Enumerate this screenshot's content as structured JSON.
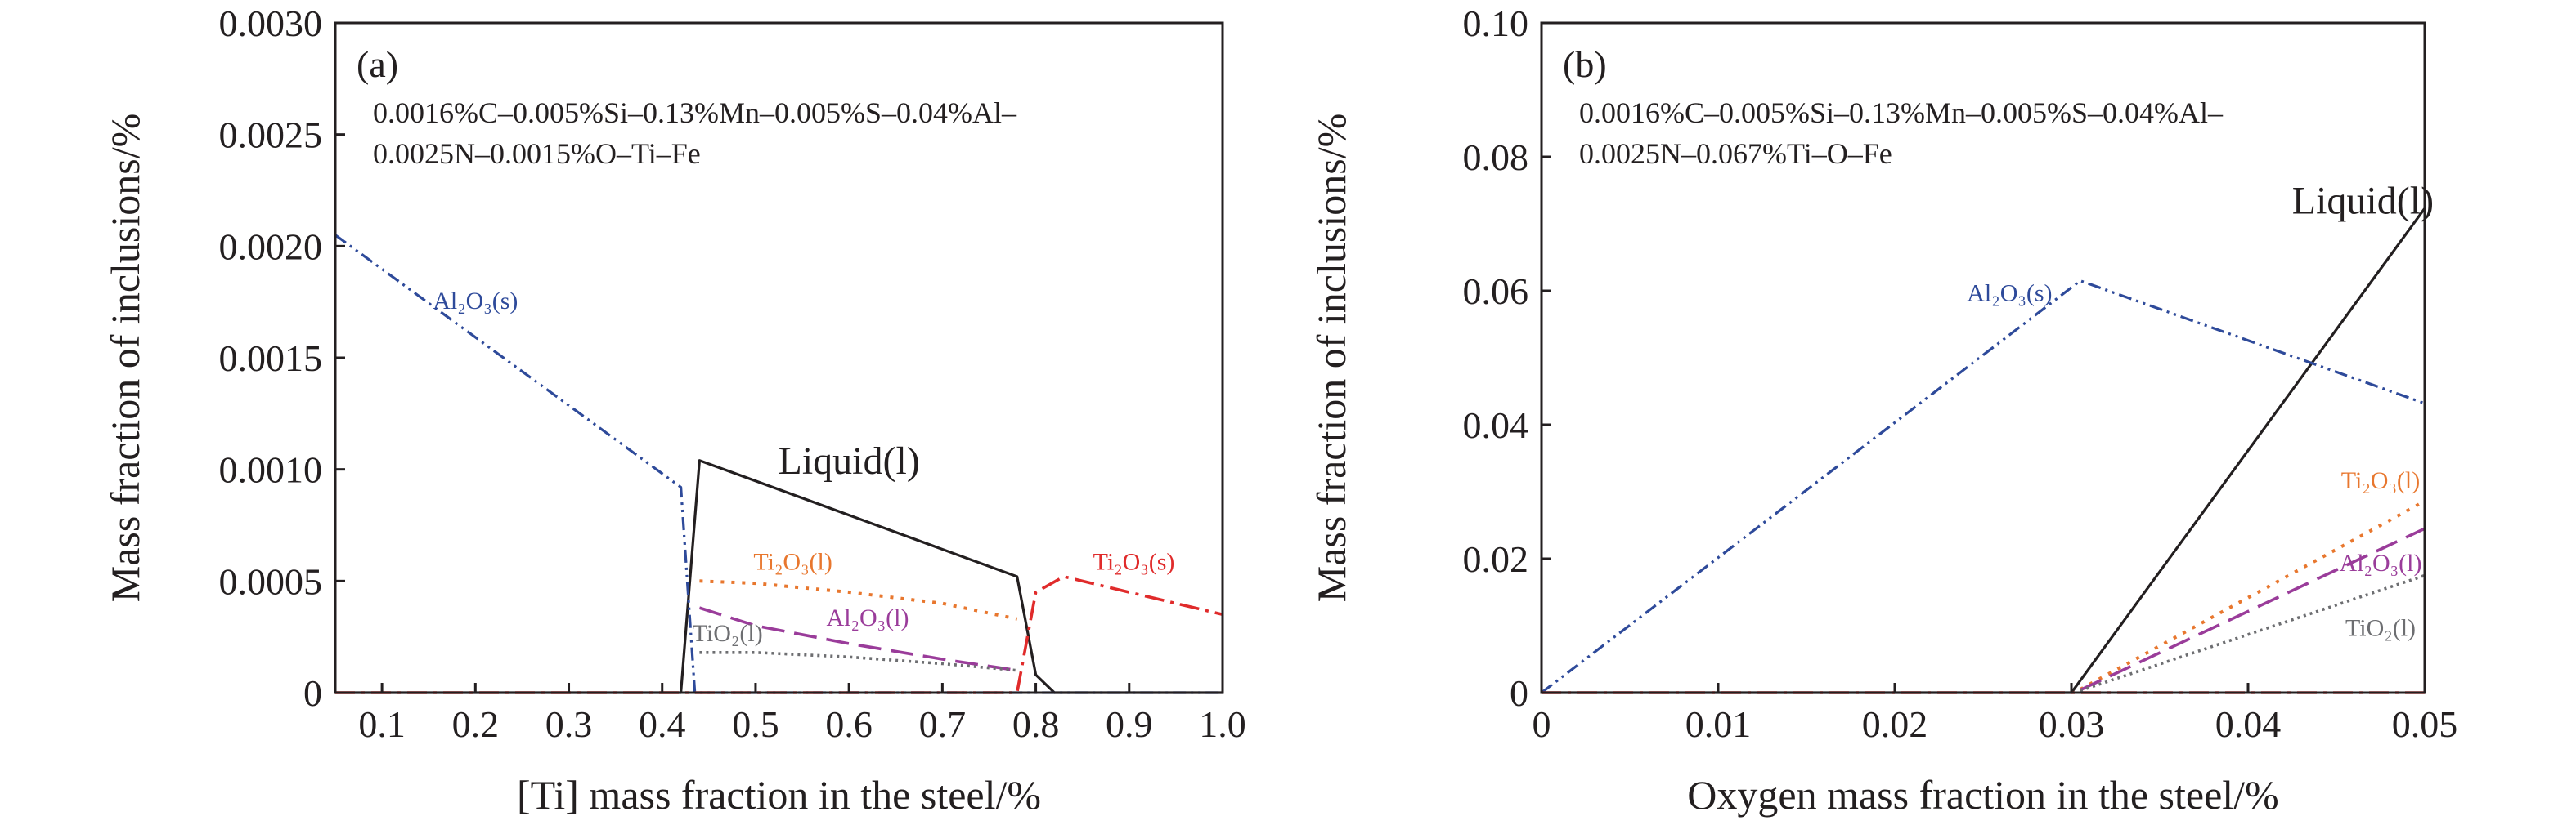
{
  "colors": {
    "liquid": "#231f20",
    "al2o3_s": "#2e4a9a",
    "ti2o3_s": "#e02b2b",
    "ti2o3_l": "#e8772e",
    "al2o3_l": "#9a3c9a",
    "tio2_l": "#6d6e71",
    "axis": "#231f20"
  },
  "chart_data": [
    {
      "type": "line",
      "panel_label": "(a)",
      "composition_line1": "0.0016%C–0.005%Si–0.13%Mn–0.005%S–0.04%Al–",
      "composition_line2": "0.0025N–0.0015%O–Ti–Fe",
      "xlabel": "[Ti] mass fraction in the steel/%",
      "ylabel": "Mass fraction of inclusions/%",
      "xlim": [
        0.05,
        1.0
      ],
      "ylim": [
        0,
        0.003
      ],
      "x_ticks": [
        0.1,
        0.2,
        0.3,
        0.4,
        0.5,
        0.6,
        0.7,
        0.8,
        0.9,
        1.0
      ],
      "x_tick_labels": [
        "0.1",
        "0.2",
        "0.3",
        "0.4",
        "0.5",
        "0.6",
        "0.7",
        "0.8",
        "0.9",
        "1.0"
      ],
      "y_ticks": [
        0,
        0.0005,
        0.001,
        0.0015,
        0.002,
        0.0025,
        0.003
      ],
      "y_tick_labels": [
        "0",
        "0.0005",
        "0.0010",
        "0.0015",
        "0.0020",
        "0.0025",
        "0.0030"
      ],
      "series": [
        {
          "key": "liquid",
          "label": "Liquid(l)",
          "label_at": [
            0.6,
            0.00098
          ],
          "label_style": "big",
          "points": [
            [
              0.05,
              0
            ],
            [
              0.42,
              0
            ],
            [
              0.44,
              0.00104
            ],
            [
              0.78,
              0.00052
            ],
            [
              0.8,
              8e-05
            ],
            [
              0.82,
              0
            ],
            [
              1.0,
              0
            ]
          ]
        },
        {
          "key": "al2o3_s",
          "label": "Al₂O₃(s)",
          "label_at": [
            0.2,
            0.00172
          ],
          "points": [
            [
              0.05,
              0.00205
            ],
            [
              0.42,
              0.00092
            ],
            [
              0.435,
              0
            ],
            [
              1.0,
              0
            ]
          ]
        },
        {
          "key": "ti2o3_s",
          "label": "Ti₂O₃(s)",
          "label_at": [
            0.905,
            0.00055
          ],
          "points": [
            [
              0.05,
              0
            ],
            [
              0.78,
              0
            ],
            [
              0.8,
              0.00045
            ],
            [
              0.83,
              0.00052
            ],
            [
              1.0,
              0.00035
            ]
          ]
        },
        {
          "key": "ti2o3_l",
          "label": "Ti₂O₃(l)",
          "label_at": [
            0.54,
            0.00055
          ],
          "points": [
            [
              0.44,
              0.0005
            ],
            [
              0.5,
              0.00049
            ],
            [
              0.6,
              0.00045
            ],
            [
              0.7,
              0.0004
            ],
            [
              0.78,
              0.00033
            ]
          ]
        },
        {
          "key": "al2o3_l",
          "label": "Al₂O₃(l)",
          "label_at": [
            0.62,
            0.0003
          ],
          "points": [
            [
              0.44,
              0.00038
            ],
            [
              0.5,
              0.0003
            ],
            [
              0.6,
              0.00022
            ],
            [
              0.7,
              0.00015
            ],
            [
              0.78,
              0.0001
            ]
          ]
        },
        {
          "key": "tio2_l",
          "label": "TiO₂(l)",
          "label_at": [
            0.47,
            0.00023
          ],
          "points": [
            [
              0.44,
              0.00018
            ],
            [
              0.5,
              0.00018
            ],
            [
              0.6,
              0.00016
            ],
            [
              0.7,
              0.00013
            ],
            [
              0.78,
              0.0001
            ]
          ]
        }
      ]
    },
    {
      "type": "line",
      "panel_label": "(b)",
      "composition_line1": "0.0016%C–0.005%Si–0.13%Mn–0.005%S–0.04%Al–",
      "composition_line2": "0.0025N–0.067%Ti–O–Fe",
      "xlabel": "Oxygen mass fraction in the steel/%",
      "ylabel": "Mass fraction of inclusions/%",
      "xlim": [
        0,
        0.05
      ],
      "ylim": [
        0,
        0.1
      ],
      "x_ticks": [
        0,
        0.01,
        0.02,
        0.03,
        0.04,
        0.05
      ],
      "x_tick_labels": [
        "0",
        "0.01",
        "0.02",
        "0.03",
        "0.04",
        "0.05"
      ],
      "y_ticks": [
        0,
        0.02,
        0.04,
        0.06,
        0.08,
        0.1
      ],
      "y_tick_labels": [
        "0",
        "0.02",
        "0.04",
        "0.06",
        "0.08",
        "0.10"
      ],
      "series": [
        {
          "key": "liquid",
          "label": "Liquid(l)",
          "label_at": [
            0.0465,
            0.0715
          ],
          "label_style": "big",
          "points": [
            [
              0,
              0
            ],
            [
              0.03,
              0
            ],
            [
              0.05,
              0.0723
            ]
          ]
        },
        {
          "key": "al2o3_s",
          "label": "Al₂O₃(s)",
          "label_at": [
            0.0265,
            0.0585
          ],
          "points": [
            [
              0,
              0
            ],
            [
              0.0305,
              0.0615
            ],
            [
              0.05,
              0.0432
            ]
          ]
        },
        {
          "key": "ti2o3_s",
          "label": "",
          "points": [
            [
              0,
              0
            ],
            [
              0.05,
              0
            ]
          ]
        },
        {
          "key": "ti2o3_l",
          "label": "Ti₂O₃(l)",
          "label_at": [
            0.0475,
            0.0305
          ],
          "points": [
            [
              0.0305,
              0.0005
            ],
            [
              0.05,
              0.0286
            ]
          ]
        },
        {
          "key": "al2o3_l",
          "label": "Al₂O₃(l)",
          "label_at": [
            0.0475,
            0.0182
          ],
          "points": [
            [
              0.0305,
              0.0004
            ],
            [
              0.05,
              0.0245
            ]
          ]
        },
        {
          "key": "tio2_l",
          "label": "TiO₂(l)",
          "label_at": [
            0.0475,
            0.0085
          ],
          "points": [
            [
              0.0305,
              0.0003
            ],
            [
              0.05,
              0.0175
            ]
          ]
        }
      ]
    }
  ]
}
